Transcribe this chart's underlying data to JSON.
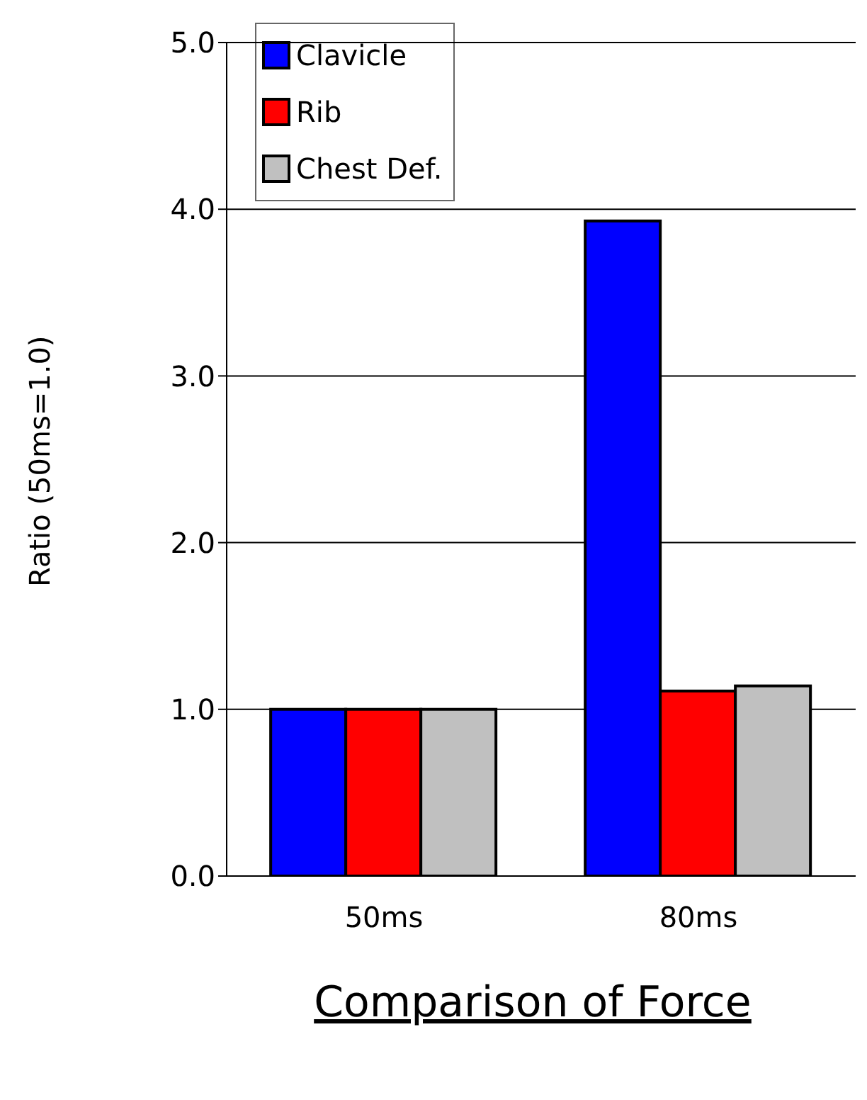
{
  "chart_data": {
    "type": "bar",
    "title": "Comparison of Force",
    "ylabel": "Ratio (50ms=1.0)",
    "categories": [
      "50ms",
      "80ms"
    ],
    "series": [
      {
        "name": "Clavicle",
        "color": "#0000ff",
        "values": [
          1.0,
          3.93
        ]
      },
      {
        "name": "Rib",
        "color": "#ff0000",
        "values": [
          1.0,
          1.11
        ]
      },
      {
        "name": "Chest Def.",
        "color": "#c0c0c0",
        "values": [
          1.0,
          1.14
        ]
      }
    ],
    "ylim": [
      0,
      5
    ],
    "yticks": [
      {
        "value": 0,
        "label": "0.0"
      },
      {
        "value": 1,
        "label": "1.0"
      },
      {
        "value": 2,
        "label": "2.0"
      },
      {
        "value": 3,
        "label": "3.0"
      },
      {
        "value": 4,
        "label": "4.0"
      },
      {
        "value": 5,
        "label": "5.0"
      }
    ],
    "grid": "y",
    "legend": "top left"
  }
}
